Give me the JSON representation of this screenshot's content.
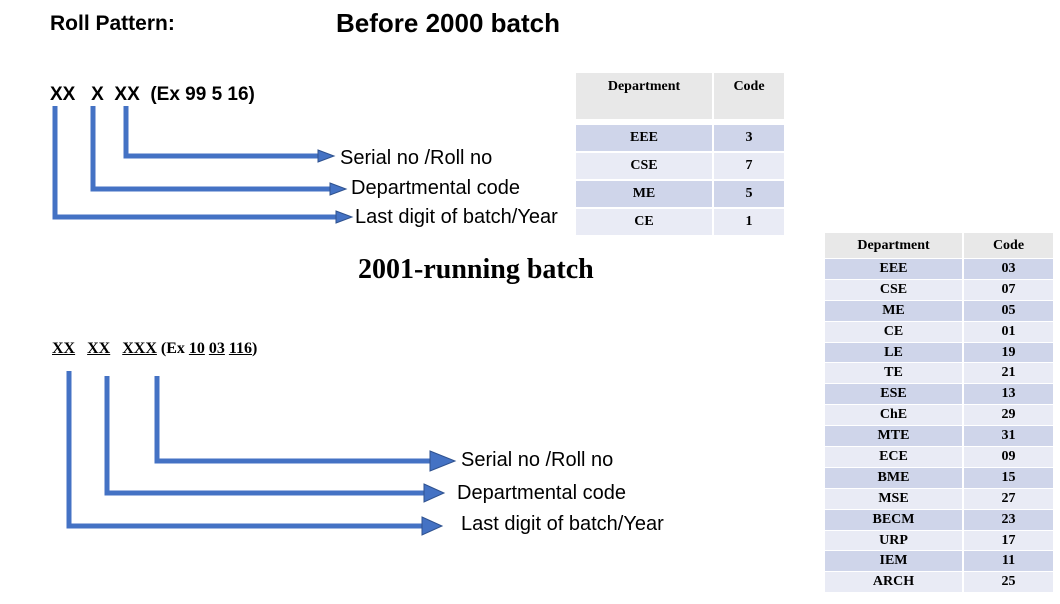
{
  "header": {
    "roll_pattern": "Roll Pattern:",
    "before_title": "Before 2000 batch",
    "running_title": "2001-running batch"
  },
  "before": {
    "pattern": "XX   X  XX  (Ex 99 5 16)",
    "labels": {
      "serial": "Serial no /Roll no",
      "dept": "Departmental code",
      "year": "Last digit of batch/Year"
    }
  },
  "after": {
    "pattern_parts": [
      "XX",
      "XX",
      "XXX",
      "(Ex",
      "10",
      "03",
      "116",
      ")"
    ],
    "labels": {
      "serial": "Serial no /Roll no",
      "dept": "Departmental code",
      "year": "Last digit of batch/Year"
    }
  },
  "table_before": {
    "headers": [
      "Department",
      "Code"
    ],
    "rows": [
      [
        "EEE",
        "3"
      ],
      [
        "CSE",
        "7"
      ],
      [
        "ME",
        "5"
      ],
      [
        "CE",
        "1"
      ]
    ]
  },
  "table_after": {
    "headers": [
      "Department",
      "Code"
    ],
    "rows": [
      [
        "EEE",
        "03"
      ],
      [
        "CSE",
        "07"
      ],
      [
        "ME",
        "05"
      ],
      [
        "CE",
        "01"
      ],
      [
        "LE",
        "19"
      ],
      [
        "TE",
        "21"
      ],
      [
        "ESE",
        "13"
      ],
      [
        "ChE",
        "29"
      ],
      [
        "MTE",
        "31"
      ],
      [
        "ECE",
        "09"
      ],
      [
        "BME",
        "15"
      ],
      [
        "MSE",
        "27"
      ],
      [
        "BECM",
        "23"
      ],
      [
        "URP",
        "17"
      ],
      [
        "IEM",
        "11"
      ],
      [
        "ARCH",
        "25"
      ]
    ]
  },
  "colors": {
    "arrow_fill": "#4472c4",
    "arrow_stroke": "#2f528f",
    "row_dark": "#cfd5ea",
    "row_light": "#e9ebf5",
    "header_bg": "#e8e8e8"
  }
}
